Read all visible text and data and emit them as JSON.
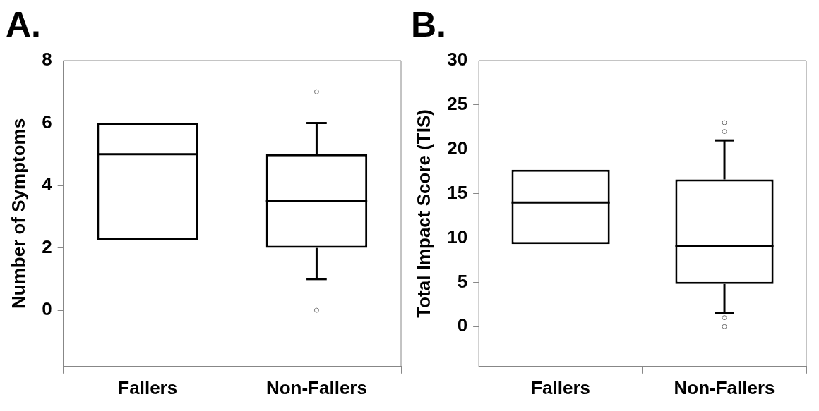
{
  "chart_data": [
    {
      "type": "box",
      "title": "A.",
      "ylabel": "Number of Symptoms",
      "categories": [
        "Fallers",
        "Non-Fallers"
      ],
      "ylim": [
        -1.8,
        8
      ],
      "yticks": [
        0,
        2,
        4,
        6,
        8
      ],
      "grid": false,
      "boxes": [
        {
          "low": 2.25,
          "q1": 2.25,
          "median": 5,
          "q3": 6,
          "high": 6
        },
        {
          "low": 1,
          "q1": 2,
          "median": 3.5,
          "q3": 5,
          "high": 6,
          "outliers": [
            0,
            7
          ]
        }
      ]
    },
    {
      "type": "box",
      "title": "B.",
      "ylabel": "Total Impact Score (TIS)",
      "categories": [
        "Fallers",
        "Non-Fallers"
      ],
      "ylim": [
        -4.5,
        30
      ],
      "yticks": [
        0,
        5,
        10,
        15,
        20,
        25,
        30
      ],
      "grid": false,
      "boxes": [
        {
          "low": 9.3,
          "q1": 9.3,
          "median": 14,
          "q3": 17.7,
          "high": 17.7
        },
        {
          "low": 1.5,
          "q1": 4.8,
          "median": 9.1,
          "q3": 16.6,
          "high": 21,
          "outliers": [
            0,
            1,
            22,
            23
          ]
        }
      ]
    }
  ]
}
